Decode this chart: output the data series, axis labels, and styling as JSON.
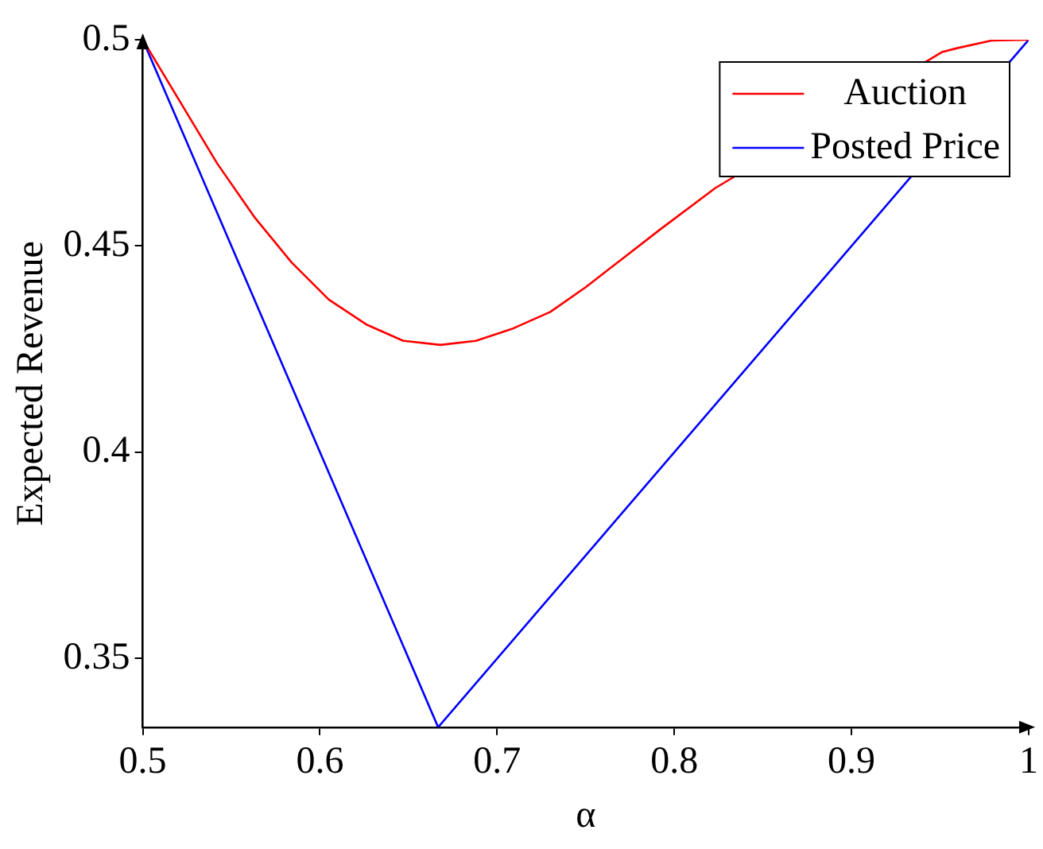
{
  "chart_data": {
    "type": "line",
    "xlabel": "α",
    "ylabel": "Expected Revenue",
    "xlim": [
      0.5,
      1
    ],
    "ylim": [
      0.3333,
      0.5
    ],
    "xticks": [
      0.5,
      0.6,
      0.7,
      0.8,
      0.9,
      1
    ],
    "yticks": [
      0.35,
      0.4,
      0.45,
      0.5
    ],
    "grid": false,
    "legend": "top right",
    "marker": "none",
    "line_style": "solid",
    "series": [
      {
        "name": "Auction",
        "color": "#ff0000",
        "x": [
          0.5,
          0.542,
          0.563,
          0.584,
          0.605,
          0.626,
          0.647,
          0.668,
          0.688,
          0.709,
          0.73,
          0.75,
          0.771,
          0.792,
          0.823,
          0.951,
          0.96,
          0.979,
          1
        ],
        "values": [
          0.5,
          0.47,
          0.457,
          0.446,
          0.437,
          0.431,
          0.427,
          0.426,
          0.427,
          0.43,
          0.434,
          0.44,
          0.447,
          0.454,
          0.464,
          0.497,
          0.498,
          0.4998,
          0.5
        ]
      },
      {
        "name": "Posted Price",
        "color": "#0000ff",
        "x": [
          0.5,
          0.6667,
          1
        ],
        "values": [
          0.5,
          0.3333,
          0.5
        ]
      }
    ]
  }
}
